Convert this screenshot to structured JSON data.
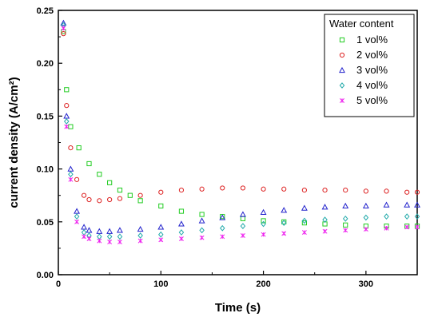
{
  "chart_data": {
    "type": "scatter",
    "xlabel": "Time (s)",
    "ylabel": "current density (A/cm²)",
    "xlim": [
      0,
      350
    ],
    "ylim": [
      0,
      0.25
    ],
    "xticks": [
      "0",
      "100",
      "200",
      "300"
    ],
    "yticks": [
      "0.00",
      "0.05",
      "0.10",
      "0.15",
      "0.20",
      "0.25"
    ],
    "grid": false,
    "legend": {
      "title": "Water content",
      "placement": "top-right"
    },
    "series": [
      {
        "name": "1 vol%",
        "color": "#22cc22",
        "marker": "square",
        "x": [
          5,
          8,
          12,
          20,
          30,
          40,
          50,
          60,
          70,
          80,
          100,
          120,
          140,
          160,
          180,
          200,
          220,
          240,
          260,
          280,
          300,
          320,
          340,
          350
        ],
        "y": [
          0.23,
          0.175,
          0.14,
          0.12,
          0.105,
          0.095,
          0.087,
          0.08,
          0.075,
          0.07,
          0.065,
          0.06,
          0.057,
          0.055,
          0.053,
          0.051,
          0.05,
          0.049,
          0.048,
          0.047,
          0.046,
          0.046,
          0.046,
          0.046
        ]
      },
      {
        "name": "2 vol%",
        "color": "#dd2222",
        "marker": "circle",
        "x": [
          5,
          8,
          12,
          18,
          25,
          30,
          40,
          50,
          60,
          80,
          100,
          120,
          140,
          160,
          180,
          200,
          220,
          240,
          260,
          280,
          300,
          320,
          340,
          350
        ],
        "y": [
          0.228,
          0.16,
          0.12,
          0.09,
          0.075,
          0.071,
          0.07,
          0.071,
          0.072,
          0.075,
          0.078,
          0.08,
          0.081,
          0.082,
          0.082,
          0.081,
          0.081,
          0.08,
          0.08,
          0.08,
          0.079,
          0.079,
          0.078,
          0.078
        ]
      },
      {
        "name": "3 vol%",
        "color": "#2222cc",
        "marker": "triangle",
        "x": [
          5,
          8,
          12,
          18,
          25,
          30,
          40,
          50,
          60,
          80,
          100,
          120,
          140,
          160,
          180,
          200,
          220,
          240,
          260,
          280,
          300,
          320,
          340,
          350
        ],
        "y": [
          0.238,
          0.15,
          0.1,
          0.06,
          0.045,
          0.042,
          0.041,
          0.041,
          0.042,
          0.043,
          0.045,
          0.048,
          0.051,
          0.054,
          0.057,
          0.059,
          0.061,
          0.063,
          0.064,
          0.065,
          0.065,
          0.066,
          0.066,
          0.066
        ]
      },
      {
        "name": "4 vol%",
        "color": "#22aaaa",
        "marker": "diamond",
        "x": [
          5,
          8,
          12,
          18,
          25,
          30,
          40,
          50,
          60,
          80,
          100,
          120,
          140,
          160,
          180,
          200,
          220,
          240,
          260,
          280,
          300,
          320,
          340,
          350
        ],
        "y": [
          0.236,
          0.145,
          0.095,
          0.055,
          0.04,
          0.037,
          0.036,
          0.036,
          0.036,
          0.037,
          0.038,
          0.04,
          0.042,
          0.044,
          0.046,
          0.048,
          0.049,
          0.051,
          0.052,
          0.053,
          0.054,
          0.055,
          0.055,
          0.055
        ]
      },
      {
        "name": "5 vol%",
        "color": "#ee22ee",
        "marker": "star",
        "x": [
          5,
          8,
          12,
          18,
          25,
          30,
          40,
          50,
          60,
          80,
          100,
          120,
          140,
          160,
          180,
          200,
          220,
          240,
          260,
          280,
          300,
          320,
          340,
          350
        ],
        "y": [
          0.233,
          0.14,
          0.09,
          0.05,
          0.036,
          0.034,
          0.032,
          0.031,
          0.031,
          0.032,
          0.033,
          0.034,
          0.035,
          0.036,
          0.037,
          0.038,
          0.039,
          0.04,
          0.041,
          0.042,
          0.043,
          0.044,
          0.045,
          0.045
        ]
      }
    ]
  }
}
